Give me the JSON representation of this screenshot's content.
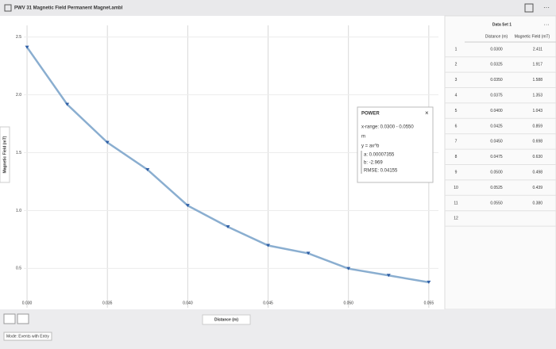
{
  "window": {
    "title": "PWV 31 Magnetic Field Permanent Magnet.ambl",
    "menu": "···",
    "mode": "Mode: Events with Entry"
  },
  "chart_data": {
    "type": "line",
    "xlabel": "Distance (m)",
    "ylabel": "Magnetic Field (mT)",
    "x": [
      0.03,
      0.0325,
      0.035,
      0.0375,
      0.04,
      0.0425,
      0.045,
      0.0475,
      0.05,
      0.0525,
      0.055
    ],
    "values": [
      2.411,
      1.917,
      1.588,
      1.353,
      1.043,
      0.859,
      0.698,
      0.63,
      0.498,
      0.439,
      0.38
    ],
    "color": "#2f5fa6",
    "line_color": "#8aaed0",
    "xlim": [
      0.0298,
      0.0556
    ],
    "ylim": [
      0.16,
      2.6
    ],
    "xticks": [
      {
        "value": 0.03,
        "label": "0.030"
      },
      {
        "value": 0.035,
        "label": "0.035"
      },
      {
        "value": 0.04,
        "label": "0.040"
      },
      {
        "value": 0.045,
        "label": "0.045"
      },
      {
        "value": 0.05,
        "label": "0.050"
      },
      {
        "value": 0.055,
        "label": "0.055"
      }
    ],
    "yticks": [
      0.5,
      {
        "value": 1,
        "label": "1.0"
      },
      1.5,
      {
        "value": 2,
        "label": "2.0"
      },
      2.5
    ],
    "grid": true,
    "annotation": {
      "title": "POWER",
      "close": "×",
      "lines": [
        "x-range: 0.0300 - 0.0550",
        "m",
        "y = ax^b"
      ],
      "fit": [
        "a: 0.00007355",
        "b: -2.969",
        "RMSE: 0.04155"
      ]
    }
  },
  "table": {
    "title": "Data Set 1",
    "menu": "···",
    "headers": [
      "Distance (m)",
      "Magnetic Field (mT)"
    ],
    "row_numbers": [
      "1",
      "2",
      "3",
      "4",
      "5",
      "6",
      "7",
      "8",
      "9",
      "10",
      "11",
      "12"
    ],
    "rows": [
      [
        "0.0300",
        "2.411"
      ],
      [
        "0.0325",
        "1.917"
      ],
      [
        "0.0350",
        "1.588"
      ],
      [
        "0.0375",
        "1.353"
      ],
      [
        "0.0400",
        "1.043"
      ],
      [
        "0.0425",
        "0.859"
      ],
      [
        "0.0450",
        "0.698"
      ],
      [
        "0.0475",
        "0.630"
      ],
      [
        "0.0500",
        "0.498"
      ],
      [
        "0.0525",
        "0.439"
      ],
      [
        "0.0550",
        "0.380"
      ]
    ]
  }
}
